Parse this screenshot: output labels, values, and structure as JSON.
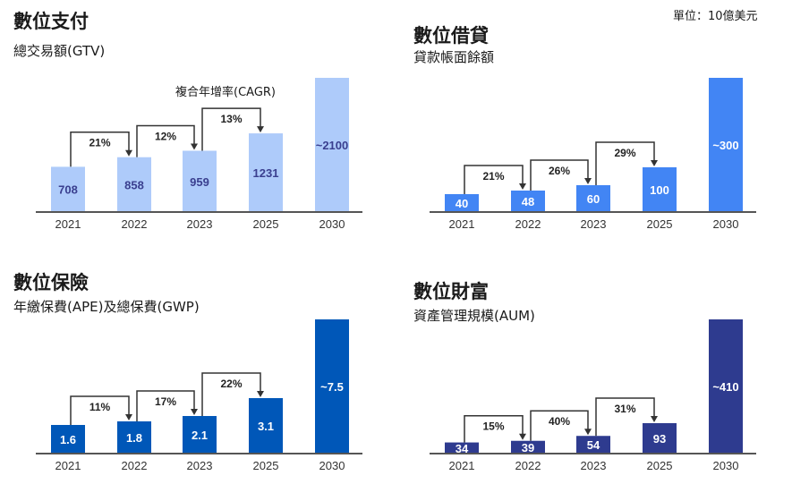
{
  "unit_label": "單位：10億美元",
  "cagr_label": "複合年增率(CAGR)",
  "chart_data": [
    {
      "type": "bar",
      "title": "數位支付",
      "subtitle": "總交易額(GTV)",
      "categories": [
        "2021",
        "2022",
        "2023",
        "2025",
        "2030"
      ],
      "values": [
        708,
        858,
        959,
        1231,
        2100
      ],
      "labels": [
        "708",
        "858",
        "959",
        "1231",
        "~2100"
      ],
      "growth": [
        "21%",
        "12%",
        "13%"
      ],
      "color": "#aecbfa",
      "label_color": "#3a3f8f"
    },
    {
      "type": "bar",
      "title": "數位借貸",
      "subtitle": "貸款帳面餘額",
      "categories": [
        "2021",
        "2022",
        "2023",
        "2025",
        "2030"
      ],
      "values": [
        40,
        48,
        60,
        100,
        300
      ],
      "labels": [
        "40",
        "48",
        "60",
        "100",
        "~300"
      ],
      "growth": [
        "21%",
        "26%",
        "29%"
      ],
      "color": "#4285f4",
      "label_color": "#ffffff"
    },
    {
      "type": "bar",
      "title": "數位保險",
      "subtitle": "年繳保費(APE)及總保費(GWP)",
      "categories": [
        "2021",
        "2022",
        "2023",
        "2025",
        "2030"
      ],
      "values": [
        1.6,
        1.8,
        2.1,
        3.1,
        7.5
      ],
      "labels": [
        "1.6",
        "1.8",
        "2.1",
        "3.1",
        "~7.5"
      ],
      "growth": [
        "11%",
        "17%",
        "22%"
      ],
      "color": "#0057b8",
      "label_color": "#ffffff"
    },
    {
      "type": "bar",
      "title": "數位財富",
      "subtitle": "資產管理規模(AUM)",
      "categories": [
        "2021",
        "2022",
        "2023",
        "2025",
        "2030"
      ],
      "values": [
        34,
        39,
        54,
        93,
        410
      ],
      "labels": [
        "34",
        "39",
        "54",
        "93",
        "~410"
      ],
      "growth": [
        "15%",
        "40%",
        "31%"
      ],
      "color": "#2e3b8f",
      "label_color": "#ffffff"
    }
  ]
}
